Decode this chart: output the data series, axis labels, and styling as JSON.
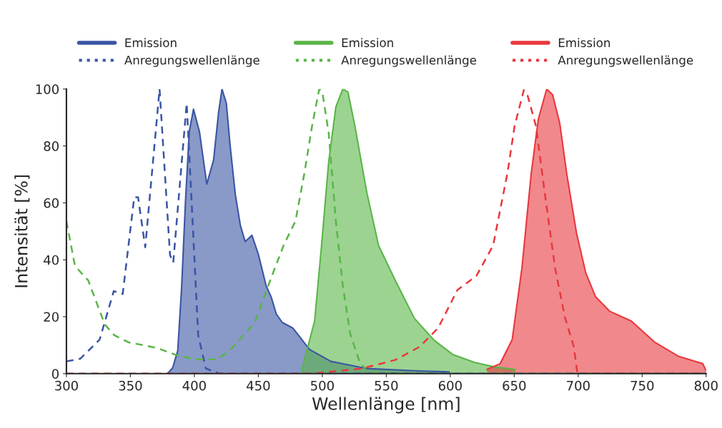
{
  "chart_data": {
    "type": "area",
    "xlabel": "Wellenlänge [nm]",
    "ylabel": "Intensität [%]",
    "xlim": [
      300,
      800
    ],
    "ylim": [
      0,
      100
    ],
    "xticks": [
      300,
      350,
      400,
      450,
      500,
      550,
      600,
      650,
      700,
      750,
      800
    ],
    "yticks": [
      0,
      20,
      40,
      60,
      80,
      100
    ],
    "grid": false,
    "legend": "top",
    "series": [
      {
        "name": "Emission",
        "line_style": "solid",
        "color": "#3a55a4",
        "x": [
          379,
          383,
          387,
          390,
          393,
          396,
          399.3,
          404,
          409.7,
          415,
          419,
          421.6,
          425,
          428,
          432,
          436,
          439.7,
          445,
          450,
          456,
          460,
          464,
          468.7,
          477,
          490,
          506.7,
          534.6,
          572,
          599,
          600
        ],
        "values": [
          0,
          2,
          8,
          30,
          60,
          85,
          92.9,
          85,
          66.6,
          75,
          92,
          100,
          95,
          80,
          63,
          52,
          46.4,
          48.6,
          42,
          31,
          27,
          21,
          18,
          16,
          8.5,
          4.3,
          1.8,
          1,
          0.6,
          0
        ]
      },
      {
        "name": "Anregungswellenlänge",
        "type": "line",
        "line_style": "dashed",
        "color": "#3a55a4",
        "x": [
          300,
          311,
          326,
          337,
          344,
          353,
          356,
          361.6,
          372.8,
          381,
          383.5,
          394,
          399,
          403,
          409,
          420,
          800
        ],
        "values": [
          4.3,
          5.3,
          12,
          29,
          28,
          62,
          62,
          44.4,
          100,
          41.6,
          39,
          95,
          50,
          13.5,
          1.8,
          0,
          0
        ]
      },
      {
        "name": "Emission",
        "line_style": "solid",
        "color": "#5ab548",
        "x": [
          483.6,
          485.5,
          494,
          499.4,
          505,
          510.6,
          516,
          520,
          525.5,
          534.8,
          544,
          557,
          572,
          587,
          601.7,
          618.5,
          635,
          650.3,
          651
        ],
        "values": [
          0,
          4,
          18.5,
          45,
          74.5,
          93.7,
          100,
          99,
          87,
          63.6,
          45,
          32.8,
          19.4,
          11.9,
          6.8,
          4,
          2.3,
          1.5,
          0
        ]
      },
      {
        "name": "Anregungswellenlänge",
        "type": "line",
        "line_style": "dashed",
        "color": "#5ab548",
        "x": [
          300,
          306.7,
          317,
          330,
          337.4,
          348.6,
          371,
          386,
          400.6,
          417.3,
          427,
          447,
          460,
          469.7,
          479,
          486,
          492,
          497.6,
          500,
          505,
          510.6,
          516,
          521.8,
          529,
          534.6,
          540,
          800
        ],
        "values": [
          53.6,
          37.8,
          32.8,
          17.3,
          13.5,
          11,
          9,
          6.5,
          5,
          5,
          7.8,
          17.8,
          33.6,
          45,
          53.6,
          70.4,
          87,
          100,
          99,
          84.5,
          53.6,
          31,
          14,
          4.3,
          1,
          0,
          0
        ]
      },
      {
        "name": "Emission",
        "line_style": "solid",
        "color": "#e8383d",
        "x": [
          628.8,
          639,
          648.4,
          656,
          663.3,
          668.9,
          675.4,
          680,
          685.6,
          691,
          698.7,
          706,
          713.6,
          724.7,
          741.5,
          760,
          778.8,
          797.4,
          800
        ],
        "values": [
          1.5,
          3.5,
          11.9,
          37,
          70.4,
          89.5,
          100,
          98,
          88,
          70.4,
          49.4,
          35.3,
          27,
          21.9,
          18.5,
          11,
          6,
          3.5,
          1
        ]
      },
      {
        "name": "Anregungswellenlänge",
        "type": "line",
        "line_style": "dashed",
        "color": "#e8383d",
        "x": [
          300,
          491,
          531,
          557,
          576,
          590.5,
          605.6,
          620.5,
          633.5,
          644.7,
          650.3,
          657.5,
          660,
          667,
          674.3,
          682,
          689.5,
          696.6,
          699.4,
          800
        ],
        "values": [
          0,
          0,
          1.8,
          4.8,
          9.4,
          16,
          29.4,
          34.4,
          45,
          70.4,
          87,
          99.6,
          98.5,
          87,
          62,
          37,
          20,
          9.4,
          0,
          0
        ]
      }
    ]
  }
}
